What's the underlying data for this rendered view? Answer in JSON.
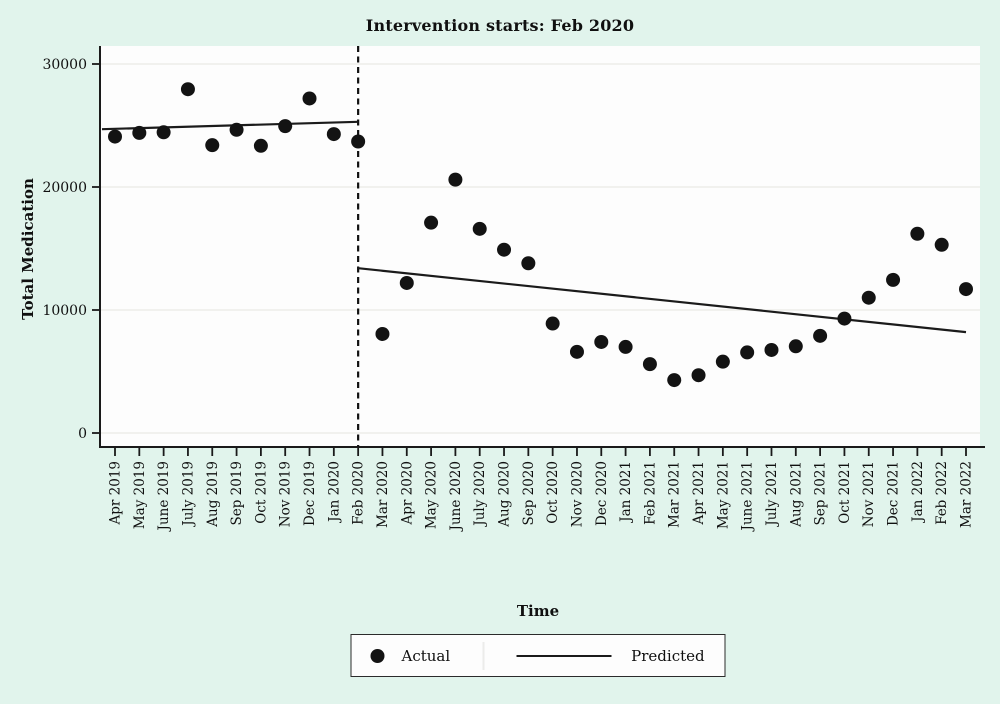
{
  "page": {
    "background_color": "#e1f4ec",
    "plot_background_color": "#fdfdfd"
  },
  "chart_data": {
    "type": "scatter",
    "title": "Intervention starts: Feb 2020",
    "xlabel": "Time",
    "ylabel": "Total Medication",
    "grid": "horizontal-light",
    "ylim": [
      0,
      31500
    ],
    "y_ticks": [
      0,
      10000,
      20000,
      30000
    ],
    "x_tick_labels": [
      "Apr 2019",
      "May 2019",
      "June 2019",
      "July 2019",
      "Aug 2019",
      "Sep 2019",
      "Oct 2019",
      "Nov 2019",
      "Dec 2019",
      "Jan 2020",
      "Feb 2020",
      "Mar 2020",
      "Apr 2020",
      "May 2020",
      "June 2020",
      "July 2020",
      "Aug 2020",
      "Sep 2020",
      "Oct 2020",
      "Nov 2020",
      "Dec 2020",
      "Jan 2021",
      "Feb 2021",
      "Mar 2021",
      "Apr 2021",
      "May 2021",
      "June 2021",
      "July 2021",
      "Aug 2021",
      "Sep 2021",
      "Oct 2021",
      "Nov 2021",
      "Dec 2021",
      "Jan 2022",
      "Feb 2022",
      "Mar 2022"
    ],
    "intervention": {
      "month": "Feb 2020",
      "line_style": "dashed"
    },
    "series": [
      {
        "name": "Actual",
        "type": "scatter",
        "color": "#131313",
        "values": [
          24100,
          24400,
          24450,
          27950,
          23400,
          24650,
          23350,
          24950,
          27200,
          24300,
          23700,
          8050,
          12200,
          17100,
          20600,
          16600,
          14900,
          13800,
          8900,
          6600,
          7400,
          7000,
          5600,
          4300,
          4700,
          5800,
          6550,
          6750,
          7050,
          7900,
          9300,
          11000,
          12450,
          16200,
          15300,
          11700
        ]
      },
      {
        "name": "Predicted",
        "type": "line",
        "color": "#1b1b1b",
        "segments": [
          {
            "x_start": "Apr 2019",
            "x_end": "Feb 2020",
            "value_start": 24700,
            "value_end": 25300,
            "extends_to_left_edge": true
          },
          {
            "x_start": "Feb 2020",
            "x_end": "Mar 2022",
            "value_start": 13400,
            "value_end": 8200
          }
        ]
      }
    ],
    "legend": {
      "position": "bottom",
      "entries": [
        {
          "label": "Actual",
          "marker": "dot"
        },
        {
          "label": "Predicted",
          "marker": "line"
        }
      ]
    }
  }
}
